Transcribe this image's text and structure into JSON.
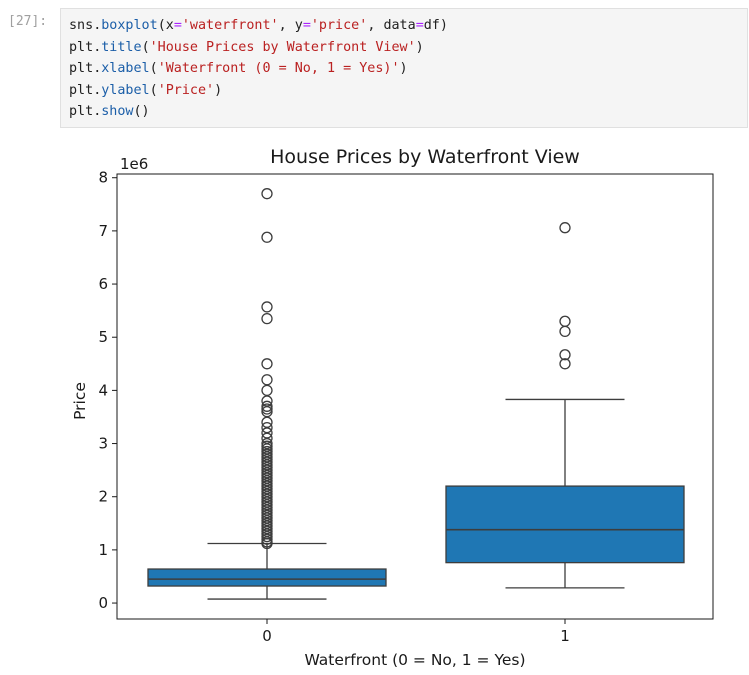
{
  "cell": {
    "prompt": "[27]:",
    "code_lines": [
      [
        {
          "t": "sns",
          "c": "p"
        },
        {
          "t": ".",
          "c": "p"
        },
        {
          "t": "boxplot",
          "c": "fn"
        },
        {
          "t": "(",
          "c": "p"
        },
        {
          "t": "x",
          "c": "p"
        },
        {
          "t": "=",
          "c": "op"
        },
        {
          "t": "'waterfront'",
          "c": "str"
        },
        {
          "t": ", ",
          "c": "p"
        },
        {
          "t": "y",
          "c": "p"
        },
        {
          "t": "=",
          "c": "op"
        },
        {
          "t": "'price'",
          "c": "str"
        },
        {
          "t": ", ",
          "c": "p"
        },
        {
          "t": "data",
          "c": "p"
        },
        {
          "t": "=",
          "c": "op"
        },
        {
          "t": "df",
          "c": "p"
        },
        {
          "t": ")",
          "c": "p"
        }
      ],
      [
        {
          "t": "plt",
          "c": "p"
        },
        {
          "t": ".",
          "c": "p"
        },
        {
          "t": "title",
          "c": "fn"
        },
        {
          "t": "(",
          "c": "p"
        },
        {
          "t": "'House Prices by Waterfront View'",
          "c": "str"
        },
        {
          "t": ")",
          "c": "p"
        }
      ],
      [
        {
          "t": "plt",
          "c": "p"
        },
        {
          "t": ".",
          "c": "p"
        },
        {
          "t": "xlabel",
          "c": "fn"
        },
        {
          "t": "(",
          "c": "p"
        },
        {
          "t": "'Waterfront (0 = No, 1 = Yes)'",
          "c": "str"
        },
        {
          "t": ")",
          "c": "p"
        }
      ],
      [
        {
          "t": "plt",
          "c": "p"
        },
        {
          "t": ".",
          "c": "p"
        },
        {
          "t": "ylabel",
          "c": "fn"
        },
        {
          "t": "(",
          "c": "p"
        },
        {
          "t": "'Price'",
          "c": "str"
        },
        {
          "t": ")",
          "c": "p"
        }
      ],
      [
        {
          "t": "plt",
          "c": "p"
        },
        {
          "t": ".",
          "c": "p"
        },
        {
          "t": "show",
          "c": "fn"
        },
        {
          "t": "()",
          "c": "p"
        }
      ]
    ]
  },
  "chart_data": {
    "type": "box",
    "title": "House Prices by Waterfront View",
    "xlabel": "Waterfront (0 = No, 1 = Yes)",
    "ylabel": "Price",
    "y_scale_label": "1e6",
    "ylim": [
      -0.3,
      8.07
    ],
    "yticks": [
      0,
      1,
      2,
      3,
      4,
      5,
      6,
      7,
      8
    ],
    "categories": [
      "0",
      "1"
    ],
    "box_color": "#1f77b4",
    "boxes": [
      {
        "category": "0",
        "whisker_low": 0.075,
        "q1": 0.32,
        "median": 0.45,
        "q3": 0.64,
        "whisker_high": 1.12,
        "outliers": [
          7.7,
          6.88,
          5.57,
          5.35,
          4.5,
          4.2,
          4.0,
          3.8,
          3.7,
          3.65,
          3.6,
          3.4,
          3.3,
          3.2,
          3.1,
          3.0,
          2.95,
          2.9,
          2.85,
          2.8,
          2.75,
          2.7,
          2.65,
          2.6,
          2.55,
          2.5,
          2.45,
          2.4,
          2.35,
          2.3,
          2.25,
          2.2,
          2.15,
          2.1,
          2.05,
          2.0,
          1.95,
          1.9,
          1.85,
          1.8,
          1.75,
          1.7,
          1.65,
          1.6,
          1.55,
          1.5,
          1.45,
          1.4,
          1.35,
          1.3,
          1.25,
          1.2,
          1.15,
          1.12
        ]
      },
      {
        "category": "1",
        "whisker_low": 0.285,
        "q1": 0.76,
        "median": 1.38,
        "q3": 2.2,
        "whisker_high": 3.83,
        "outliers": [
          7.06,
          5.3,
          5.11,
          4.67,
          4.5
        ]
      }
    ]
  }
}
